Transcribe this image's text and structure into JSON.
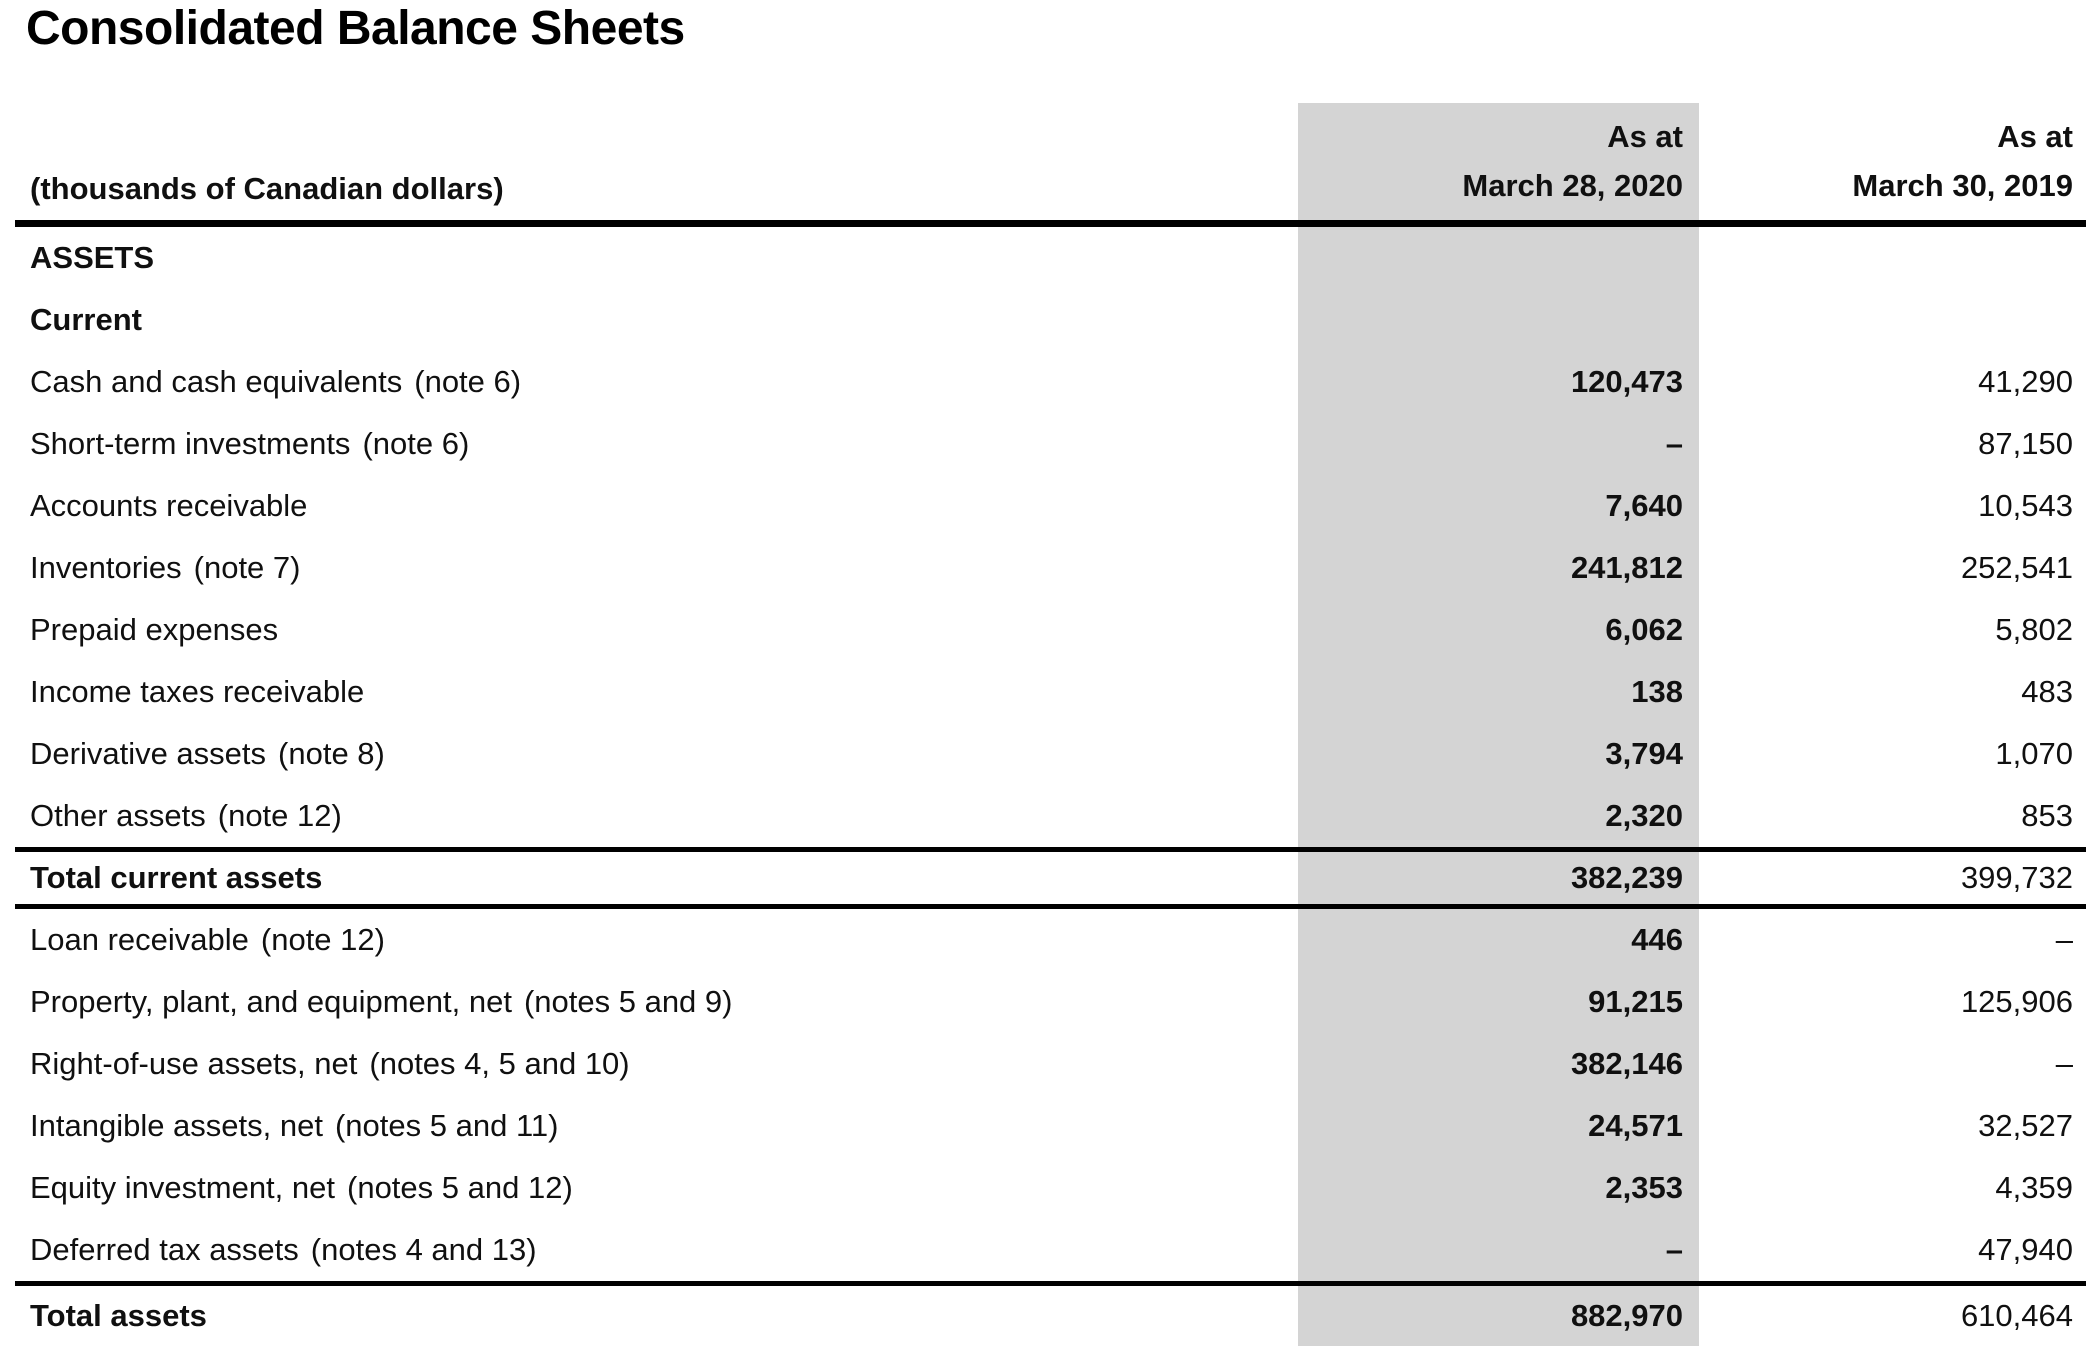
{
  "page_title": "Consolidated Balance Sheets",
  "colors": {
    "highlight_column_bg": "#d4d4d4",
    "rule": "#000000",
    "text": "#101010"
  },
  "table": {
    "unit_label": "(thousands of Canadian dollars)",
    "col_2020": {
      "as_at": "As at",
      "date": "March 28, 2020"
    },
    "col_2019": {
      "as_at": "As at",
      "date": "March 30, 2019"
    },
    "rows": [
      {
        "label": "ASSETS",
        "note": "",
        "v2020": "",
        "v2019": ""
      },
      {
        "label": "Current",
        "note": "",
        "v2020": "",
        "v2019": ""
      },
      {
        "label": "Cash and cash equivalents",
        "note": "(note 6)",
        "v2020": "120,473",
        "v2019": "41,290"
      },
      {
        "label": "Short-term investments",
        "note": "(note 6)",
        "v2020": "–",
        "v2019": "87,150"
      },
      {
        "label": "Accounts receivable",
        "note": "",
        "v2020": "7,640",
        "v2019": "10,543"
      },
      {
        "label": "Inventories",
        "note": "(note 7)",
        "v2020": "241,812",
        "v2019": "252,541"
      },
      {
        "label": "Prepaid expenses",
        "note": "",
        "v2020": "6,062",
        "v2019": "5,802"
      },
      {
        "label": "Income taxes receivable",
        "note": "",
        "v2020": "138",
        "v2019": "483"
      },
      {
        "label": "Derivative assets",
        "note": "(note 8)",
        "v2020": "3,794",
        "v2019": "1,070"
      },
      {
        "label": "Other assets",
        "note": "(note 12)",
        "v2020": "2,320",
        "v2019": "853"
      },
      {
        "label": "Total current assets",
        "note": "",
        "v2020": "382,239",
        "v2019": "399,732"
      },
      {
        "label": "Loan receivable",
        "note": "(note 12)",
        "v2020": "446",
        "v2019": "–"
      },
      {
        "label": "Property, plant, and equipment, net",
        "note": "(notes 5 and 9)",
        "v2020": "91,215",
        "v2019": "125,906"
      },
      {
        "label": "Right-of-use assets, net",
        "note": "(notes 4, 5 and 10)",
        "v2020": "382,146",
        "v2019": "–"
      },
      {
        "label": "Intangible assets, net",
        "note": "(notes 5 and 11)",
        "v2020": "24,571",
        "v2019": "32,527"
      },
      {
        "label": "Equity investment, net",
        "note": "(notes 5 and 12)",
        "v2020": "2,353",
        "v2019": "4,359"
      },
      {
        "label": "Deferred tax assets",
        "note": "(notes 4 and 13)",
        "v2020": "–",
        "v2019": "47,940"
      },
      {
        "label": "Total assets",
        "note": "",
        "v2020": "882,970",
        "v2019": "610,464"
      }
    ]
  }
}
